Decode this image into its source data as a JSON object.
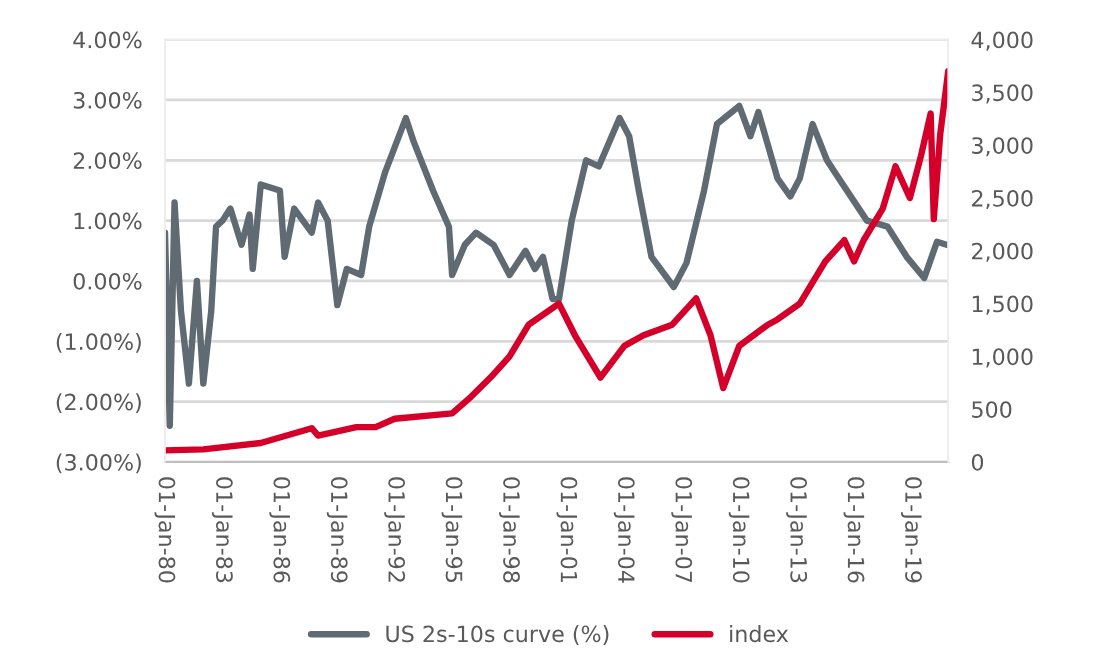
{
  "chart_data": {
    "type": "line",
    "x": [
      "1980-01",
      "1980-04",
      "1980-07",
      "1980-11",
      "1981-04",
      "1981-09",
      "1982-01",
      "1982-06",
      "1982-09",
      "1983-01",
      "1983-06",
      "1984-01",
      "1984-06",
      "1984-08",
      "1985-01",
      "1986-01",
      "1986-04",
      "1986-10",
      "1987-09",
      "1988-01",
      "1988-07",
      "1989-01",
      "1989-07",
      "1990-04",
      "1990-09",
      "1991-07",
      "1992-08",
      "1993-01",
      "1994-01",
      "1994-11",
      "1995-01",
      "1995-09",
      "1996-04",
      "1997-03",
      "1998-01",
      "1998-11",
      "1999-05",
      "1999-10",
      "2000-04",
      "2000-08",
      "2001-04",
      "2002-01",
      "2002-09",
      "2003-10",
      "2004-04",
      "2004-10",
      "2005-06",
      "2006-08",
      "2007-04",
      "2008-03",
      "2008-11",
      "2010-01",
      "2010-08",
      "2011-01",
      "2012-01",
      "2012-09",
      "2013-03",
      "2013-11",
      "2014-08",
      "2015-06",
      "2016-09",
      "2017-10",
      "2018-10",
      "2019-09",
      "2020-05",
      "2020-11"
    ],
    "series": [
      {
        "name": "US 2s-10s curve (%)",
        "color": "#5f6a72",
        "values": [
          0.8,
          -2.4,
          1.3,
          -0.5,
          -1.7,
          0.0,
          -1.7,
          -0.5,
          0.9,
          1.0,
          1.2,
          0.6,
          1.1,
          0.2,
          1.6,
          1.5,
          0.4,
          1.2,
          0.8,
          1.3,
          1.0,
          -0.4,
          0.2,
          0.1,
          0.9,
          1.8,
          2.7,
          2.3,
          1.5,
          0.9,
          0.1,
          0.6,
          0.8,
          0.6,
          0.1,
          0.5,
          0.2,
          0.4,
          -0.3,
          -0.3,
          1.0,
          2.0,
          1.9,
          2.7,
          2.4,
          1.5,
          0.4,
          -0.1,
          0.3,
          1.5,
          2.6,
          2.9,
          2.4,
          2.8,
          1.7,
          1.4,
          1.7,
          2.6,
          2.0,
          1.6,
          1.0,
          0.9,
          0.4,
          0.05,
          0.65,
          0.6
        ]
      },
      {
        "name": "index",
        "color": "#d4002a",
        "axis": "y2",
        "x": [
          "1980-01",
          "1982-01",
          "1985-01",
          "1987-09",
          "1988-01",
          "1990-01",
          "1991-01",
          "1992-01",
          "1995-01",
          "1996-01",
          "1997-01",
          "1998-01",
          "1999-01",
          "2000-08",
          "2001-06",
          "2002-10",
          "2004-01",
          "2005-01",
          "2006-07",
          "2007-10",
          "2008-07",
          "2009-03",
          "2010-01",
          "2011-07",
          "2012-01",
          "2013-03",
          "2014-07",
          "2015-07",
          "2016-01",
          "2016-07",
          "2017-07",
          "2018-03",
          "2018-12",
          "2019-07",
          "2020-01",
          "2020-03",
          "2020-07",
          "2020-12"
        ],
        "values": [
          110,
          120,
          180,
          320,
          250,
          330,
          330,
          410,
          460,
          620,
          800,
          1000,
          1300,
          1500,
          1200,
          800,
          1100,
          1200,
          1300,
          1550,
          1200,
          700,
          1100,
          1300,
          1350,
          1500,
          1900,
          2100,
          1900,
          2100,
          2400,
          2800,
          2500,
          2900,
          3300,
          2300,
          3100,
          3700
        ]
      }
    ],
    "xlim": [
      "1980-01",
      "2020-12"
    ],
    "xticks": [
      {
        "value": "1980-01-01",
        "label": "01-Jan-80"
      },
      {
        "value": "1983-01-01",
        "label": "01-Jan-83"
      },
      {
        "value": "1986-01-01",
        "label": "01-Jan-86"
      },
      {
        "value": "1989-01-01",
        "label": "01-Jan-89"
      },
      {
        "value": "1992-01-01",
        "label": "01-Jan-92"
      },
      {
        "value": "1995-01-01",
        "label": "01-Jan-95"
      },
      {
        "value": "1998-01-01",
        "label": "01-Jan-98"
      },
      {
        "value": "2001-01-01",
        "label": "01-Jan-01"
      },
      {
        "value": "2004-01-01",
        "label": "01-Jan-04"
      },
      {
        "value": "2007-01-01",
        "label": "01-Jan-07"
      },
      {
        "value": "2010-01-01",
        "label": "01-Jan-10"
      },
      {
        "value": "2013-01-01",
        "label": "01-Jan-13"
      },
      {
        "value": "2016-01-01",
        "label": "01-Jan-16"
      },
      {
        "value": "2019-01-01",
        "label": "01-Jan-19"
      }
    ],
    "ylim": [
      -3,
      4
    ],
    "yticks": [
      {
        "value": -3,
        "label": "(3.00%)"
      },
      {
        "value": -2,
        "label": "(2.00%)"
      },
      {
        "value": -1,
        "label": "(1.00%)"
      },
      {
        "value": 0,
        "label": "0.00%"
      },
      {
        "value": 1,
        "label": "1.00%"
      },
      {
        "value": 2,
        "label": "2.00%"
      },
      {
        "value": 3,
        "label": "3.00%"
      },
      {
        "value": 4,
        "label": "4.00%"
      }
    ],
    "y2lim": [
      0,
      4000
    ],
    "y2ticks": [
      {
        "value": 0,
        "label": "0"
      },
      {
        "value": 500,
        "label": "500"
      },
      {
        "value": 1000,
        "label": "1,000"
      },
      {
        "value": 1500,
        "label": "1,500"
      },
      {
        "value": 2000,
        "label": "2,000"
      },
      {
        "value": 2500,
        "label": "2,500"
      },
      {
        "value": 3000,
        "label": "3,000"
      },
      {
        "value": 3500,
        "label": "3,500"
      },
      {
        "value": 4000,
        "label": "4,000"
      }
    ],
    "grid": "y",
    "legend": "bottom"
  }
}
